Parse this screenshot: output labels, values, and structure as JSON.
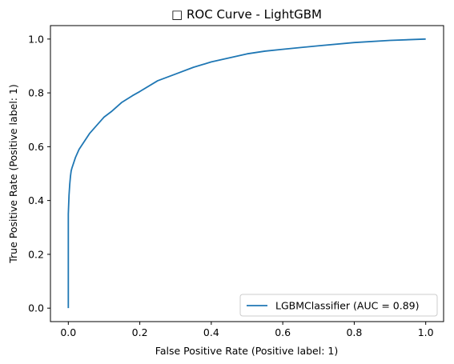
{
  "chart_data": {
    "type": "line",
    "title": "□ ROC Curve - LightGBM",
    "xlabel": "False Positive Rate (Positive label: 1)",
    "ylabel": "True Positive Rate (Positive label: 1)",
    "xlim": [
      -0.05,
      1.05
    ],
    "ylim": [
      -0.05,
      1.05
    ],
    "xticks": [
      "0.0",
      "0.2",
      "0.4",
      "0.6",
      "0.8",
      "1.0"
    ],
    "yticks": [
      "0.0",
      "0.2",
      "0.4",
      "0.6",
      "0.8",
      "1.0"
    ],
    "grid": false,
    "legend_position": "lower-right",
    "series": [
      {
        "name": "LGBMClassifier (AUC = 0.89)",
        "color": "#1f77b4",
        "x": [
          0.0,
          0.0,
          0.002,
          0.004,
          0.006,
          0.008,
          0.01,
          0.015,
          0.02,
          0.03,
          0.04,
          0.05,
          0.06,
          0.08,
          0.1,
          0.12,
          0.15,
          0.18,
          0.2,
          0.25,
          0.3,
          0.35,
          0.4,
          0.45,
          0.5,
          0.55,
          0.6,
          0.7,
          0.8,
          0.9,
          1.0
        ],
        "y": [
          0.0,
          0.35,
          0.42,
          0.46,
          0.49,
          0.51,
          0.52,
          0.54,
          0.56,
          0.59,
          0.61,
          0.63,
          0.65,
          0.68,
          0.71,
          0.73,
          0.765,
          0.79,
          0.805,
          0.845,
          0.87,
          0.895,
          0.915,
          0.93,
          0.945,
          0.955,
          0.962,
          0.975,
          0.987,
          0.995,
          1.0
        ]
      }
    ]
  }
}
